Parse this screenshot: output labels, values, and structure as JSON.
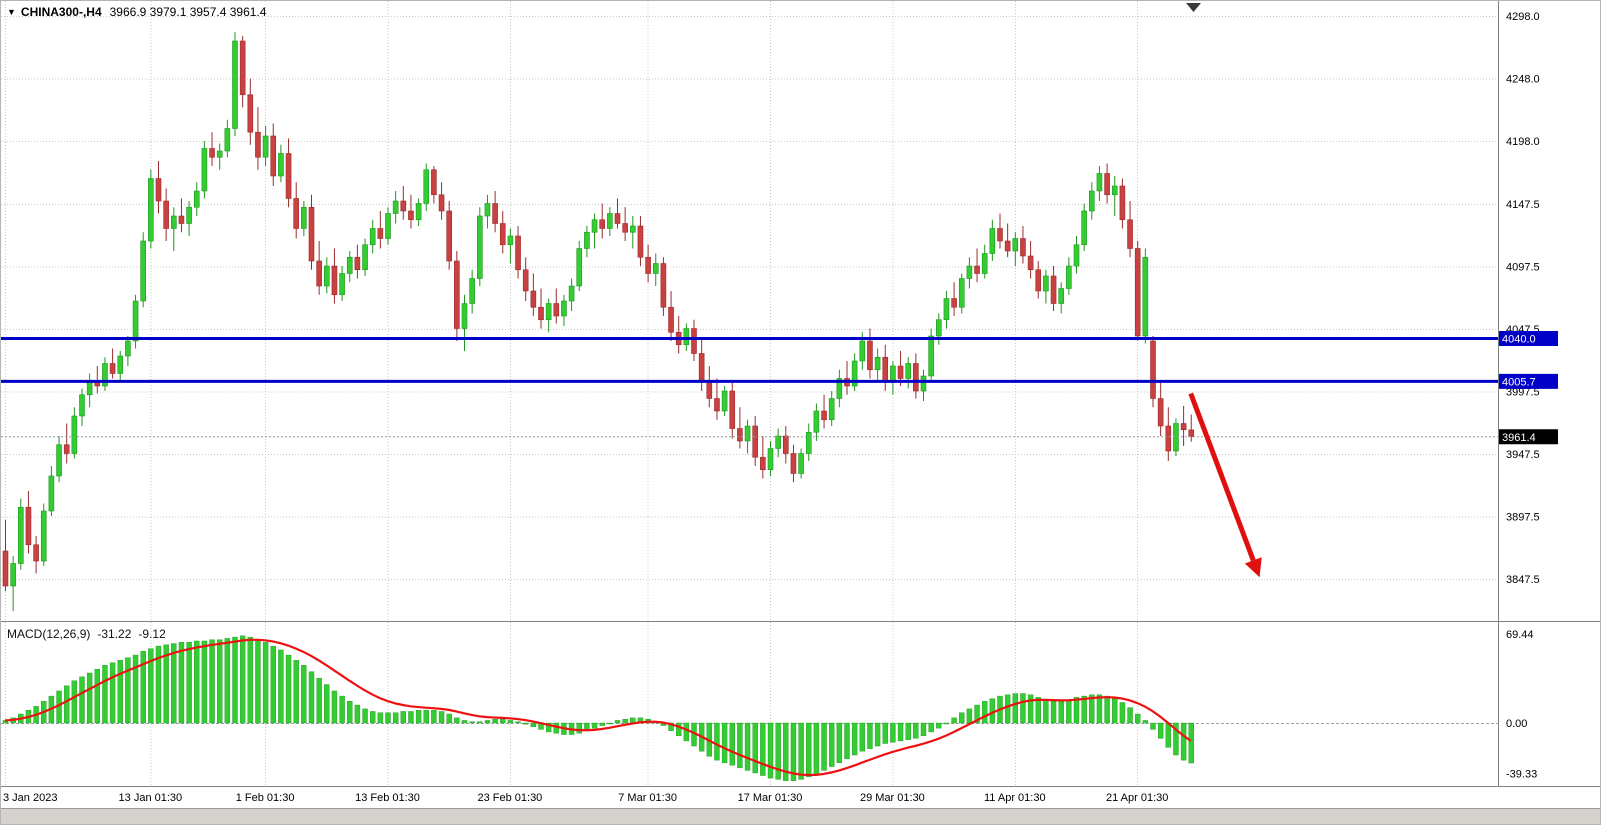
{
  "window": {
    "dropdown_glyph": "▼",
    "symbol_period": "CHINA300-,H4",
    "ohlc_text": "3966.9  3979.1  3957.4  3961.4"
  },
  "colors": {
    "bull": "#33CC33",
    "bull_border": "#1E961E",
    "bear": "#C94140",
    "bear_border": "#9A2B2B",
    "hline": "#0000C8",
    "signal_line": "#EE1111",
    "arrow": "#E01010",
    "grid": "#C9C9C9",
    "zero_line": "#A0A0A0",
    "axis_text": "#000000",
    "separator": "#808080",
    "current_price_tag": "#000000"
  },
  "chart_data": {
    "type": "candlestick",
    "symbol": "CHINA300-",
    "timeframe": "H4",
    "main": {
      "price_axis_labels": [
        {
          "v": 4298.0,
          "t": "4298.0"
        },
        {
          "v": 4248.0,
          "t": "4248.0"
        },
        {
          "v": 4198.0,
          "t": "4198.0"
        },
        {
          "v": 4147.5,
          "t": "4147.5"
        },
        {
          "v": 4097.5,
          "t": "4097.5"
        },
        {
          "v": 4047.5,
          "t": "4047.5"
        },
        {
          "v": 3997.5,
          "t": "3997.5"
        },
        {
          "v": 3947.5,
          "t": "3947.5"
        },
        {
          "v": 3897.5,
          "t": "3897.5"
        },
        {
          "v": 3847.5,
          "t": "3847.5"
        }
      ],
      "hlines": [
        {
          "price": 4040.0,
          "label": "4040.0"
        },
        {
          "price": 4005.7,
          "label": "4005.7"
        }
      ],
      "current_price": {
        "value": 3961.4,
        "label": "3961.4"
      },
      "trend_arrow": {
        "from_index": 155,
        "from_price": 3996,
        "to_index": 164,
        "to_price": 3849
      },
      "candles": [
        [
          3870,
          3895,
          3838,
          3842
        ],
        [
          3842,
          3866,
          3822,
          3860
        ],
        [
          3860,
          3912,
          3855,
          3905
        ],
        [
          3905,
          3918,
          3868,
          3875
        ],
        [
          3875,
          3882,
          3852,
          3862
        ],
        [
          3862,
          3908,
          3858,
          3902
        ],
        [
          3902,
          3938,
          3898,
          3930
        ],
        [
          3930,
          3962,
          3925,
          3955
        ],
        [
          3955,
          3972,
          3940,
          3948
        ],
        [
          3948,
          3985,
          3944,
          3978
        ],
        [
          3978,
          4000,
          3970,
          3995
        ],
        [
          3995,
          4012,
          3985,
          4006
        ],
        [
          4006,
          4018,
          3996,
          4002
        ],
        [
          4002,
          4025,
          3998,
          4020
        ],
        [
          4020,
          4032,
          4008,
          4012
        ],
        [
          4012,
          4030,
          4005,
          4026
        ],
        [
          4026,
          4042,
          4018,
          4038
        ],
        [
          4038,
          4075,
          4032,
          4070
        ],
        [
          4070,
          4125,
          4065,
          4118
        ],
        [
          4118,
          4175,
          4112,
          4168
        ],
        [
          4168,
          4182,
          4140,
          4150
        ],
        [
          4150,
          4160,
          4118,
          4128
        ],
        [
          4128,
          4145,
          4110,
          4138
        ],
        [
          4138,
          4152,
          4125,
          4132
        ],
        [
          4132,
          4150,
          4122,
          4145
        ],
        [
          4145,
          4165,
          4138,
          4158
        ],
        [
          4158,
          4198,
          4152,
          4192
        ],
        [
          4192,
          4205,
          4178,
          4185
        ],
        [
          4185,
          4196,
          4175,
          4190
        ],
        [
          4190,
          4215,
          4185,
          4208
        ],
        [
          4208,
          4285,
          4202,
          4278
        ],
        [
          4278,
          4282,
          4225,
          4235
        ],
        [
          4235,
          4248,
          4195,
          4205
        ],
        [
          4205,
          4225,
          4175,
          4185
        ],
        [
          4185,
          4210,
          4178,
          4202
        ],
        [
          4202,
          4212,
          4162,
          4170
        ],
        [
          4170,
          4195,
          4165,
          4188
        ],
        [
          4188,
          4200,
          4145,
          4152
        ],
        [
          4152,
          4165,
          4120,
          4128
        ],
        [
          4128,
          4150,
          4122,
          4145
        ],
        [
          4145,
          4155,
          4095,
          4102
        ],
        [
          4102,
          4118,
          4075,
          4082
        ],
        [
          4082,
          4105,
          4076,
          4098
        ],
        [
          4098,
          4112,
          4068,
          4075
        ],
        [
          4075,
          4098,
          4070,
          4092
        ],
        [
          4092,
          4110,
          4085,
          4105
        ],
        [
          4105,
          4115,
          4088,
          4095
        ],
        [
          4095,
          4120,
          4090,
          4115
        ],
        [
          4115,
          4135,
          4108,
          4128
        ],
        [
          4128,
          4142,
          4112,
          4120
        ],
        [
          4120,
          4145,
          4115,
          4140
        ],
        [
          4140,
          4158,
          4132,
          4150
        ],
        [
          4150,
          4162,
          4135,
          4142
        ],
        [
          4142,
          4155,
          4128,
          4135
        ],
        [
          4135,
          4152,
          4130,
          4148
        ],
        [
          4148,
          4180,
          4142,
          4175
        ],
        [
          4175,
          4178,
          4148,
          4155
        ],
        [
          4155,
          4165,
          4135,
          4142
        ],
        [
          4142,
          4150,
          4095,
          4102
        ],
        [
          4102,
          4110,
          4038,
          4048
        ],
        [
          4048,
          4075,
          4030,
          4068
        ],
        [
          4068,
          4095,
          4060,
          4088
        ],
        [
          4088,
          4145,
          4082,
          4138
        ],
        [
          4138,
          4155,
          4128,
          4148
        ],
        [
          4148,
          4158,
          4125,
          4132
        ],
        [
          4132,
          4142,
          4108,
          4115
        ],
        [
          4115,
          4128,
          4100,
          4122
        ],
        [
          4122,
          4130,
          4088,
          4095
        ],
        [
          4095,
          4105,
          4070,
          4078
        ],
        [
          4078,
          4092,
          4058,
          4065
        ],
        [
          4065,
          4080,
          4048,
          4055
        ],
        [
          4055,
          4072,
          4045,
          4068
        ],
        [
          4068,
          4080,
          4052,
          4058
        ],
        [
          4058,
          4075,
          4050,
          4070
        ],
        [
          4070,
          4088,
          4062,
          4082
        ],
        [
          4082,
          4118,
          4078,
          4112
        ],
        [
          4112,
          4130,
          4105,
          4125
        ],
        [
          4125,
          4140,
          4112,
          4135
        ],
        [
          4135,
          4148,
          4120,
          4128
        ],
        [
          4128,
          4145,
          4122,
          4140
        ],
        [
          4140,
          4152,
          4128,
          4132
        ],
        [
          4132,
          4145,
          4118,
          4125
        ],
        [
          4125,
          4138,
          4112,
          4130
        ],
        [
          4130,
          4138,
          4098,
          4105
        ],
        [
          4105,
          4115,
          4085,
          4092
        ],
        [
          4092,
          4108,
          4082,
          4100
        ],
        [
          4100,
          4105,
          4058,
          4065
        ],
        [
          4065,
          4078,
          4038,
          4045
        ],
        [
          4045,
          4058,
          4028,
          4035
        ],
        [
          4035,
          4052,
          4030,
          4048
        ],
        [
          4048,
          4055,
          4022,
          4028
        ],
        [
          4028,
          4040,
          3998,
          4005
        ],
        [
          4005,
          4018,
          3985,
          3992
        ],
        [
          3992,
          4008,
          3975,
          3982
        ],
        [
          3982,
          4002,
          3978,
          3998
        ],
        [
          3998,
          4005,
          3960,
          3968
        ],
        [
          3968,
          3985,
          3952,
          3958
        ],
        [
          3958,
          3975,
          3948,
          3970
        ],
        [
          3970,
          3978,
          3938,
          3945
        ],
        [
          3945,
          3962,
          3928,
          3935
        ],
        [
          3935,
          3958,
          3930,
          3952
        ],
        [
          3952,
          3968,
          3945,
          3962
        ],
        [
          3962,
          3970,
          3940,
          3948
        ],
        [
          3948,
          3955,
          3925,
          3932
        ],
        [
          3932,
          3952,
          3928,
          3948
        ],
        [
          3948,
          3972,
          3942,
          3965
        ],
        [
          3965,
          3988,
          3958,
          3982
        ],
        [
          3982,
          3995,
          3968,
          3975
        ],
        [
          3975,
          3998,
          3970,
          3992
        ],
        [
          3992,
          4015,
          3985,
          4008
        ],
        [
          4008,
          4022,
          3995,
          4002
        ],
        [
          4002,
          4028,
          3998,
          4022
        ],
        [
          4022,
          4045,
          4015,
          4038
        ],
        [
          4038,
          4048,
          4008,
          4015
        ],
        [
          4015,
          4032,
          4005,
          4025
        ],
        [
          4025,
          4035,
          3998,
          4005
        ],
        [
          4005,
          4022,
          3995,
          4018
        ],
        [
          4018,
          4030,
          4002,
          4008
        ],
        [
          4008,
          4025,
          4000,
          4020
        ],
        [
          4020,
          4028,
          3992,
          3998
        ],
        [
          3998,
          4015,
          3990,
          4010
        ],
        [
          4010,
          4048,
          4005,
          4042
        ],
        [
          4042,
          4060,
          4035,
          4055
        ],
        [
          4055,
          4078,
          4048,
          4072
        ],
        [
          4072,
          4085,
          4058,
          4065
        ],
        [
          4065,
          4092,
          4060,
          4088
        ],
        [
          4088,
          4105,
          4080,
          4098
        ],
        [
          4098,
          4112,
          4085,
          4092
        ],
        [
          4092,
          4115,
          4088,
          4108
        ],
        [
          4108,
          4135,
          4102,
          4128
        ],
        [
          4128,
          4140,
          4112,
          4118
        ],
        [
          4118,
          4132,
          4105,
          4110
        ],
        [
          4110,
          4125,
          4098,
          4120
        ],
        [
          4120,
          4130,
          4100,
          4106
        ],
        [
          4106,
          4118,
          4088,
          4095
        ],
        [
          4095,
          4102,
          4072,
          4078
        ],
        [
          4078,
          4095,
          4068,
          4090
        ],
        [
          4090,
          4098,
          4062,
          4068
        ],
        [
          4068,
          4085,
          4060,
          4080
        ],
        [
          4080,
          4105,
          4075,
          4098
        ],
        [
          4098,
          4122,
          4092,
          4115
        ],
        [
          4115,
          4148,
          4110,
          4142
        ],
        [
          4142,
          4165,
          4135,
          4158
        ],
        [
          4158,
          4178,
          4150,
          4172
        ],
        [
          4172,
          4180,
          4148,
          4155
        ],
        [
          4155,
          4170,
          4138,
          4162
        ],
        [
          4162,
          4168,
          4128,
          4135
        ],
        [
          4135,
          4150,
          4105,
          4112
        ],
        [
          4112,
          4118,
          4038,
          4042
        ],
        [
          4042,
          4112,
          4036,
          4105
        ],
        [
          4038,
          4042,
          3985,
          3992
        ],
        [
          3992,
          4005,
          3962,
          3970
        ],
        [
          3970,
          3985,
          3942,
          3950
        ],
        [
          3950,
          3976,
          3946,
          3972
        ],
        [
          3972,
          3986,
          3954,
          3967
        ],
        [
          3966.9,
          3979.1,
          3957.4,
          3961.4
        ]
      ]
    },
    "x_axis_labels": [
      {
        "i": 0,
        "t": "3 Jan 2023"
      },
      {
        "i": 19,
        "t": "13 Jan 01:30"
      },
      {
        "i": 34,
        "t": "1 Feb 01:30"
      },
      {
        "i": 50,
        "t": "13 Feb 01:30"
      },
      {
        "i": 66,
        "t": "23 Feb 01:30"
      },
      {
        "i": 84,
        "t": "7 Mar 01:30"
      },
      {
        "i": 100,
        "t": "17 Mar 01:30"
      },
      {
        "i": 116,
        "t": "29 Mar 01:30"
      },
      {
        "i": 132,
        "t": "11 Apr 01:30"
      },
      {
        "i": 148,
        "t": "21 Apr 01:30"
      }
    ],
    "macd": {
      "name": "MACD(12,26,9)",
      "value_main": "-31.22",
      "value_signal": "-9.12",
      "axis_labels": [
        {
          "v": 69.44,
          "t": "69.44"
        },
        {
          "v": 0,
          "t": "0.00"
        },
        {
          "v": -39.33,
          "t": "-39.33"
        }
      ],
      "histogram": [
        2,
        4,
        7,
        10,
        13,
        17,
        21,
        25,
        29,
        33,
        36,
        39,
        42,
        45,
        47,
        49,
        51,
        53,
        56,
        58,
        60,
        61,
        62,
        63,
        63,
        64,
        64,
        65,
        65,
        66,
        67,
        68,
        67,
        65,
        63,
        60,
        57,
        53,
        49,
        45,
        40,
        35,
        30,
        25,
        21,
        17,
        14,
        11,
        9,
        8,
        8,
        8,
        9,
        9,
        10,
        10,
        10,
        9,
        7,
        4,
        2,
        1,
        1,
        2,
        3,
        3,
        2,
        1,
        -1,
        -3,
        -5,
        -7,
        -8,
        -9,
        -9,
        -8,
        -6,
        -4,
        -2,
        0,
        2,
        3,
        4,
        4,
        3,
        1,
        -2,
        -6,
        -10,
        -14,
        -18,
        -22,
        -26,
        -29,
        -31,
        -33,
        -35,
        -37,
        -39,
        -41,
        -43,
        -44,
        -45,
        -45,
        -44,
        -42,
        -40,
        -37,
        -34,
        -31,
        -28,
        -25,
        -22,
        -20,
        -18,
        -16,
        -15,
        -14,
        -13,
        -12,
        -10,
        -7,
        -4,
        0,
        4,
        8,
        11,
        14,
        17,
        19,
        21,
        22,
        23,
        23,
        22,
        20,
        18,
        17,
        17,
        18,
        20,
        21,
        22,
        22,
        21,
        19,
        16,
        12,
        7,
        2,
        -5,
        -12,
        -19,
        -25,
        -29,
        -31.22
      ]
    }
  }
}
